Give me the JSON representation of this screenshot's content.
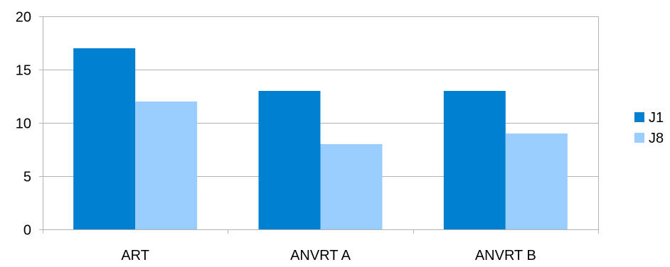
{
  "chart_data": {
    "type": "bar",
    "categories": [
      "ART",
      "ANVRT A",
      "ANVRT B"
    ],
    "series": [
      {
        "name": "J1",
        "values": [
          17,
          13,
          13
        ],
        "color": "#0080d0"
      },
      {
        "name": "J8",
        "values": [
          12,
          8,
          9
        ],
        "color": "#99ccff"
      }
    ],
    "yticks": [
      "0",
      "5",
      "10",
      "15",
      "20"
    ],
    "ylim": [
      0,
      20
    ],
    "grid": true,
    "legend_position": "right"
  }
}
